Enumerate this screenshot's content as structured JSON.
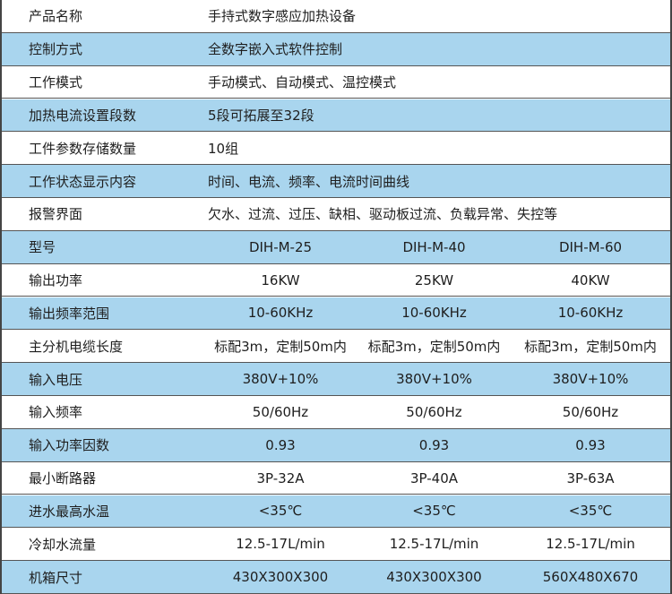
{
  "table": {
    "rows": [
      [
        "产品名称",
        "手持式数字感应加热设备"
      ],
      [
        "控制方式",
        "全数字嵌入式软件控制"
      ],
      [
        "工作模式",
        "手动模式、自动模式、温控模式"
      ],
      [
        "加热电流设置段数",
        "5段可拓展至32段"
      ],
      [
        "工件参数存储数量",
        "10组"
      ],
      [
        "工作状态显示内容",
        "时间、电流、频率、电流时间曲线"
      ],
      [
        "报警界面",
        "欠水、过流、过压、缺相、驱动板过流、负载异常、失控等"
      ],
      [
        "型号",
        "DIH-M-25",
        "DIH-M-40",
        "DIH-M-60"
      ],
      [
        "输出功率",
        "16KW",
        "25KW",
        "40KW"
      ],
      [
        "输出频率范围",
        "10-60KHz",
        "10-60KHz",
        "10-60KHz"
      ],
      [
        "主分机电缆长度",
        "标配3m，定制50m内",
        "标配3m，定制50m内",
        "标配3m，定制50m内"
      ],
      [
        "输入电压",
        "380V+10%",
        "380V+10%",
        "380V+10%"
      ],
      [
        "输入频率",
        "50/60Hz",
        "50/60Hz",
        "50/60Hz"
      ],
      [
        "输入功率因数",
        "0.93",
        "0.93",
        "0.93"
      ],
      [
        "最小断路器",
        "3P-32A",
        "3P-40A",
        "3P-63A"
      ],
      [
        "进水最高水温",
        "<35℃",
        "<35℃",
        "<35℃"
      ],
      [
        "冷却水流量",
        "12.5-17L/min",
        "12.5-17L/min",
        "12.5-17L/min"
      ],
      [
        "机箱尺寸",
        "430X300X300",
        "430X300X300",
        "560X480X670"
      ]
    ]
  }
}
